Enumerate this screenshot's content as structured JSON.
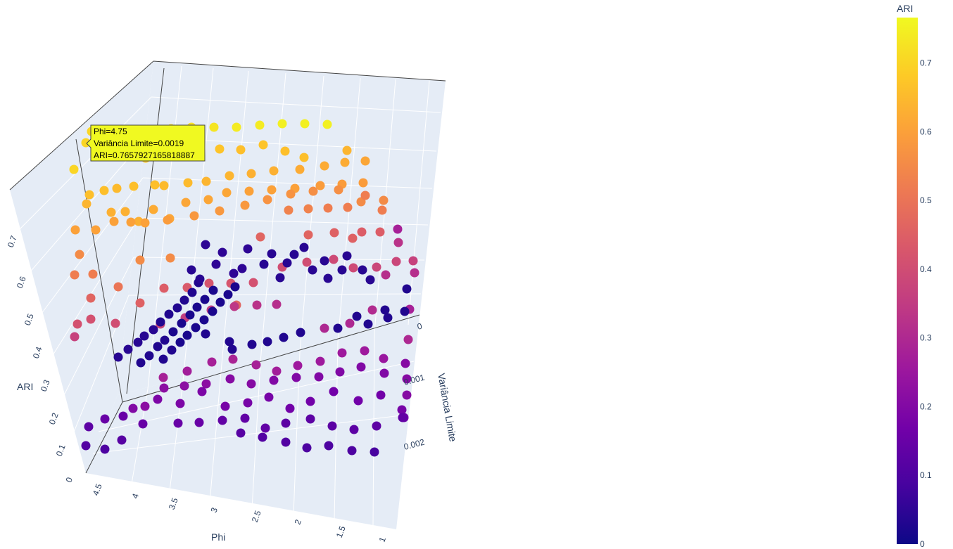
{
  "chart_data": {
    "type": "scatter3d",
    "axes": {
      "x": {
        "title": "Phi",
        "ticks": [
          "4.5",
          "4",
          "3.5",
          "3",
          "2.5",
          "2",
          "1.5",
          "1"
        ]
      },
      "y": {
        "title": "Variância Limite",
        "ticks": [
          "0",
          "0.001",
          "0.002"
        ]
      },
      "z": {
        "title": "ARI",
        "ticks": [
          "0",
          "0.1",
          "0.2",
          "0.3",
          "0.4",
          "0.5",
          "0.6",
          "0.7"
        ]
      }
    },
    "colorbar": {
      "title": "ARI",
      "ticks": [
        "0",
        "0.1",
        "0.2",
        "0.3",
        "0.4",
        "0.5",
        "0.6",
        "0.7"
      ],
      "range": [
        0,
        0.766
      ]
    },
    "hover": {
      "line1": "Phi=4.75",
      "line2": "Variância Limite=0.0019",
      "line3": "ARI=0.7657927165818887"
    },
    "points": [
      [
        105,
        241,
        0.7
      ],
      [
        130,
        187,
        0.7
      ],
      [
        159,
        185,
        0.7
      ],
      [
        184,
        186,
        0.71
      ],
      [
        214,
        185,
        0.71
      ],
      [
        243,
        183,
        0.72
      ],
      [
        272,
        181,
        0.72
      ],
      [
        304,
        181,
        0.73
      ],
      [
        336,
        181,
        0.74
      ],
      [
        369,
        178,
        0.74
      ],
      [
        401,
        176,
        0.75
      ],
      [
        433,
        176,
        0.75
      ],
      [
        465,
        177,
        0.75
      ],
      [
        122,
        203,
        0.7
      ],
      [
        148,
        205,
        0.69
      ],
      [
        177,
        205,
        0.7
      ],
      [
        207,
        225,
        0.68
      ],
      [
        233,
        222,
        0.68
      ],
      [
        257,
        203,
        0.68
      ],
      [
        281,
        205,
        0.67
      ],
      [
        312,
        212,
        0.67
      ],
      [
        342,
        213,
        0.66
      ],
      [
        374,
        206,
        0.67
      ],
      [
        405,
        215,
        0.66
      ],
      [
        432,
        224,
        0.66
      ],
      [
        493,
        214,
        0.64
      ],
      [
        127,
        277,
        0.66
      ],
      [
        148,
        271,
        0.66
      ],
      [
        166,
        268,
        0.65
      ],
      [
        190,
        265,
        0.66
      ],
      [
        220,
        263,
        0.66
      ],
      [
        233,
        264,
        0.65
      ],
      [
        267,
        260,
        0.65
      ],
      [
        293,
        258,
        0.64
      ],
      [
        326,
        250,
        0.64
      ],
      [
        357,
        247,
        0.63
      ],
      [
        389,
        243,
        0.63
      ],
      [
        426,
        241,
        0.62
      ],
      [
        461,
        236,
        0.62
      ],
      [
        490,
        231,
        0.62
      ],
      [
        519,
        229,
        0.61
      ],
      [
        123,
        290,
        0.64
      ],
      [
        158,
        302,
        0.63
      ],
      [
        178,
        301,
        0.63
      ],
      [
        197,
        315,
        0.63
      ],
      [
        218,
        298,
        0.62
      ],
      [
        241,
        311,
        0.61
      ],
      [
        264,
        288,
        0.61
      ],
      [
        296,
        284,
        0.61
      ],
      [
        322,
        274,
        0.61
      ],
      [
        354,
        272,
        0.6
      ],
      [
        386,
        270,
        0.6
      ],
      [
        419,
        268,
        0.6
      ],
      [
        455,
        264,
        0.59
      ],
      [
        486,
        262,
        0.59
      ],
      [
        516,
        260,
        0.59
      ],
      [
        107,
        327,
        0.6
      ],
      [
        136,
        327,
        0.6
      ],
      [
        162,
        315,
        0.6
      ],
      [
        186,
        316,
        0.6
      ],
      [
        206,
        317,
        0.6
      ],
      [
        238,
        313,
        0.59
      ],
      [
        276,
        307,
        0.58
      ],
      [
        312,
        300,
        0.58
      ],
      [
        348,
        292,
        0.58
      ],
      [
        380,
        284,
        0.57
      ],
      [
        413,
        276,
        0.57
      ],
      [
        445,
        272,
        0.56
      ],
      [
        481,
        270,
        0.56
      ],
      [
        513,
        287,
        0.55
      ],
      [
        545,
        285,
        0.55
      ],
      [
        113,
        362,
        0.55
      ],
      [
        199,
        370,
        0.55
      ],
      [
        242,
        367,
        0.55
      ],
      [
        410,
        299,
        0.53
      ],
      [
        438,
        297,
        0.53
      ],
      [
        466,
        296,
        0.52
      ],
      [
        494,
        295,
        0.52
      ],
      [
        519,
        278,
        0.52
      ],
      [
        543,
        299,
        0.52
      ],
      [
        106,
        391,
        0.52
      ],
      [
        132,
        390,
        0.52
      ],
      [
        168,
        408,
        0.5
      ],
      [
        336,
        434,
        0.46
      ],
      [
        370,
        337,
        0.46
      ],
      [
        438,
        334,
        0.46
      ],
      [
        475,
        331,
        0.45
      ],
      [
        501,
        339,
        0.45
      ],
      [
        514,
        330,
        0.44
      ],
      [
        540,
        330,
        0.44
      ],
      [
        129,
        424,
        0.46
      ],
      [
        199,
        431,
        0.45
      ],
      [
        233,
        410,
        0.44
      ],
      [
        266,
        409,
        0.43
      ],
      [
        297,
        403,
        0.42
      ],
      [
        328,
        403,
        0.42
      ],
      [
        360,
        402,
        0.41
      ],
      [
        401,
        380,
        0.4
      ],
      [
        436,
        373,
        0.4
      ],
      [
        474,
        369,
        0.39
      ],
      [
        502,
        381,
        0.39
      ],
      [
        535,
        380,
        0.38
      ],
      [
        563,
        372,
        0.38
      ],
      [
        587,
        371,
        0.37
      ],
      [
        110,
        461,
        0.41
      ],
      [
        129,
        454,
        0.41
      ],
      [
        164,
        460,
        0.4
      ],
      [
        228,
        461,
        0.38
      ],
      [
        263,
        452,
        0.36
      ],
      [
        300,
        441,
        0.35
      ],
      [
        333,
        436,
        0.34
      ],
      [
        365,
        434,
        0.33
      ],
      [
        393,
        433,
        0.32
      ],
      [
        461,
        467,
        0.3
      ],
      [
        497,
        460,
        0.3
      ],
      [
        529,
        441,
        0.31
      ],
      [
        548,
        391,
        0.32
      ],
      [
        566,
        345,
        0.33
      ],
      [
        589,
        388,
        0.32
      ],
      [
        106,
        479,
        0.37
      ],
      [
        232,
        537,
        0.28
      ],
      [
        266,
        528,
        0.27
      ],
      [
        301,
        515,
        0.28
      ],
      [
        331,
        511,
        0.29
      ],
      [
        364,
        519,
        0.28
      ],
      [
        393,
        528,
        0.27
      ],
      [
        423,
        520,
        0.26
      ],
      [
        455,
        514,
        0.26
      ],
      [
        486,
        502,
        0.26
      ],
      [
        518,
        499,
        0.26
      ],
      [
        545,
        510,
        0.25
      ],
      [
        565,
        326,
        0.28
      ],
      [
        580,
        483,
        0.3
      ],
      [
        582,
        440,
        0.28
      ],
      [
        206,
        578,
        0.22
      ],
      [
        233,
        552,
        0.22
      ],
      [
        262,
        549,
        0.22
      ],
      [
        293,
        546,
        0.22
      ],
      [
        327,
        539,
        0.21
      ],
      [
        357,
        546,
        0.21
      ],
      [
        389,
        541,
        0.2
      ],
      [
        421,
        537,
        0.2
      ],
      [
        453,
        536,
        0.2
      ],
      [
        483,
        529,
        0.2
      ],
      [
        513,
        522,
        0.2
      ],
      [
        546,
        531,
        0.2
      ],
      [
        576,
        517,
        0.21
      ],
      [
        578,
        539,
        0.21
      ],
      [
        578,
        562,
        0.21
      ],
      [
        189,
        581,
        0.2
      ],
      [
        224,
        568,
        0.19
      ],
      [
        256,
        574,
        0.19
      ],
      [
        287,
        557,
        0.19
      ],
      [
        320,
        578,
        0.18
      ],
      [
        352,
        573,
        0.18
      ],
      [
        382,
        565,
        0.18
      ],
      [
        412,
        581,
        0.17
      ],
      [
        441,
        571,
        0.17
      ],
      [
        474,
        557,
        0.17
      ],
      [
        509,
        570,
        0.17
      ],
      [
        541,
        562,
        0.17
      ],
      [
        571,
        583,
        0.18
      ],
      [
        574,
        594,
        0.17
      ],
      [
        149,
        596,
        0.15
      ],
      [
        175,
        592,
        0.15
      ],
      [
        203,
        603,
        0.15
      ],
      [
        253,
        602,
        0.15
      ],
      [
        283,
        601,
        0.15
      ],
      [
        316,
        598,
        0.14
      ],
      [
        348,
        595,
        0.14
      ],
      [
        377,
        609,
        0.14
      ],
      [
        406,
        602,
        0.13
      ],
      [
        441,
        596,
        0.13
      ],
      [
        472,
        606,
        0.13
      ],
      [
        503,
        611,
        0.13
      ],
      [
        535,
        606,
        0.13
      ],
      [
        572,
        594,
        0.14
      ],
      [
        126,
        607,
        0.13
      ],
      [
        173,
        626,
        0.12
      ],
      [
        122,
        634,
        0.11
      ],
      [
        149,
        639,
        0.1
      ],
      [
        342,
        616,
        0.12
      ],
      [
        373,
        622,
        0.11
      ],
      [
        406,
        629,
        0.11
      ],
      [
        436,
        637,
        0.1
      ],
      [
        467,
        634,
        0.1
      ],
      [
        500,
        641,
        0.1
      ],
      [
        532,
        643,
        0.09
      ],
      [
        168,
        508,
        0.04
      ],
      [
        182,
        497,
        0.04
      ],
      [
        196,
        487,
        0.04
      ],
      [
        205,
        478,
        0.04
      ],
      [
        218,
        469,
        0.04
      ],
      [
        228,
        458,
        0.03
      ],
      [
        240,
        447,
        0.03
      ],
      [
        252,
        438,
        0.03
      ],
      [
        262,
        427,
        0.03
      ],
      [
        273,
        416,
        0.03
      ],
      [
        282,
        402,
        0.03
      ],
      [
        200,
        516,
        0.03
      ],
      [
        212,
        506,
        0.03
      ],
      [
        224,
        493,
        0.03
      ],
      [
        234,
        484,
        0.03
      ],
      [
        246,
        472,
        0.02
      ],
      [
        258,
        460,
        0.02
      ],
      [
        270,
        448,
        0.02
      ],
      [
        280,
        437,
        0.02
      ],
      [
        291,
        426,
        0.02
      ],
      [
        303,
        413,
        0.02
      ],
      [
        232,
        511,
        0.03
      ],
      [
        244,
        498,
        0.03
      ],
      [
        256,
        487,
        0.02
      ],
      [
        266,
        477,
        0.02
      ],
      [
        278,
        466,
        0.02
      ],
      [
        290,
        455,
        0.02
      ],
      [
        302,
        443,
        0.02
      ],
      [
        313,
        430,
        0.02
      ],
      [
        324,
        419,
        0.02
      ],
      [
        334,
        408,
        0.02
      ],
      [
        272,
        384,
        0.04
      ],
      [
        284,
        397,
        0.04
      ],
      [
        292,
        348,
        0.05
      ],
      [
        307,
        376,
        0.05
      ],
      [
        316,
        359,
        0.05
      ],
      [
        332,
        389,
        0.05
      ],
      [
        344,
        382,
        0.05
      ],
      [
        352,
        354,
        0.05
      ],
      [
        375,
        376,
        0.04
      ],
      [
        386,
        361,
        0.04
      ],
      [
        398,
        395,
        0.04
      ],
      [
        408,
        374,
        0.04
      ],
      [
        418,
        362,
        0.04
      ],
      [
        432,
        352,
        0.04
      ],
      [
        444,
        384,
        0.04
      ],
      [
        461,
        371,
        0.04
      ],
      [
        466,
        396,
        0.04
      ],
      [
        486,
        384,
        0.04
      ],
      [
        493,
        364,
        0.04
      ],
      [
        515,
        384,
        0.04
      ],
      [
        526,
        398,
        0.04
      ],
      [
        292,
        475,
        0.03
      ],
      [
        326,
        486,
        0.03
      ],
      [
        330,
        497,
        0.03
      ],
      [
        358,
        490,
        0.03
      ],
      [
        380,
        486,
        0.03
      ],
      [
        403,
        480,
        0.03
      ],
      [
        427,
        473,
        0.03
      ],
      [
        480,
        467,
        0.03
      ],
      [
        507,
        450,
        0.03
      ],
      [
        523,
        461,
        0.03
      ],
      [
        547,
        441,
        0.03
      ],
      [
        551,
        452,
        0.03
      ],
      [
        575,
        443,
        0.03
      ],
      [
        578,
        411,
        0.03
      ]
    ]
  }
}
